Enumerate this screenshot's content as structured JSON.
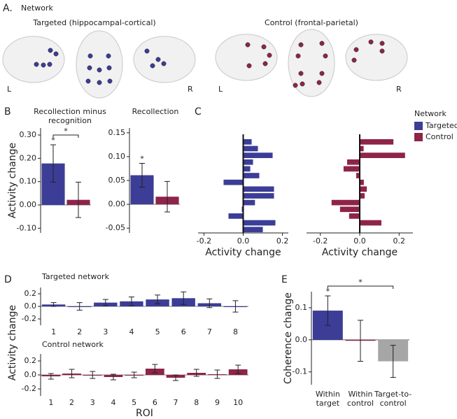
{
  "network_panel": {
    "label": "A.",
    "title": "Network",
    "groups": [
      {
        "name": "Targeted (hippocampal-cortical)",
        "left": "L",
        "right": "R",
        "color": "#3b3d96"
      },
      {
        "name": "Control (frontal-parietal)",
        "left": "L",
        "right": "R",
        "color": "#8e2449"
      }
    ]
  },
  "chart_data": [
    {
      "type": "bar",
      "panel": "B",
      "title": "Recollection minus\nrecognition",
      "y_label": "Activity change",
      "values": [
        0.178,
        0.022
      ],
      "errors": [
        0.08,
        0.076
      ],
      "colors": [
        "#3b3d96",
        "#8e2449"
      ],
      "ylim": [
        -0.12,
        0.33
      ],
      "yticks": [
        {
          "value": -0.1,
          "label": "-0.10"
        },
        {
          "value": 0,
          "label": "0.00"
        },
        {
          "value": 0.1,
          "label": "0.10"
        },
        {
          "value": 0.2,
          "label": "0.20"
        },
        {
          "value": 0.3,
          "label": "0.30"
        }
      ],
      "annotations": [
        {
          "text": "*",
          "bars": [
            0
          ]
        },
        {
          "text": "*",
          "bars": [
            0,
            1
          ]
        }
      ]
    },
    {
      "type": "bar",
      "title": "Recollection",
      "values": [
        0.061,
        0.016
      ],
      "errors": [
        0.025,
        0.032
      ],
      "colors": [
        "#3b3d96",
        "#8e2449"
      ],
      "ylim": [
        -0.06,
        0.16
      ],
      "yticks": [
        -0.05,
        {
          "value": 0,
          "label": "0.00"
        },
        0.05,
        {
          "value": 0.1,
          "label": "0.10"
        },
        0.15
      ],
      "annotations": [
        {
          "text": "*",
          "bars": [
            0
          ]
        }
      ]
    },
    {
      "type": "barh",
      "panel": "C",
      "x_label": "Activity change",
      "color": "#3b3d96",
      "values": [
        0.043,
        0.075,
        0.15,
        0.05,
        0.036,
        0.082,
        -0.1,
        0.157,
        0.157,
        0.06,
        -0.007,
        -0.075,
        0.164,
        0.1
      ],
      "xlim": [
        -0.23,
        0.23
      ],
      "xticks": [
        -0.2,
        {
          "value": 0,
          "label": "0.0"
        },
        0.2
      ]
    },
    {
      "type": "barh",
      "x_label": "Activity change",
      "color": "#8e2449",
      "values": [
        0.171,
        0.02,
        0.23,
        -0.064,
        -0.082,
        -0.018,
        0.021,
        0.036,
        0.025,
        -0.143,
        -0.1,
        -0.054,
        0.11,
        0.004
      ],
      "xlim": [
        -0.27,
        0.27
      ],
      "xticks": [
        -0.2,
        {
          "value": 0,
          "label": "0.0"
        },
        0.2
      ],
      "legend": {
        "title": "Network",
        "entries": [
          {
            "name": "Targeted",
            "color": "#3b3d96"
          },
          {
            "name": "Control",
            "color": "#8e2449"
          }
        ]
      }
    },
    {
      "type": "bar",
      "panel": "D",
      "title": "Targeted network",
      "y_label": "Activity change",
      "color": "#3b3d96",
      "categories": [
        "1",
        "2",
        "3",
        "4",
        "5",
        "6",
        "7",
        "8"
      ],
      "values": [
        0.03,
        0.0,
        0.06,
        0.08,
        0.11,
        0.13,
        0.05,
        0.0
      ],
      "errors": [
        0.03,
        0.06,
        0.05,
        0.07,
        0.07,
        0.1,
        0.07,
        0.09
      ],
      "ylim": [
        -0.3,
        0.3
      ],
      "yticks": [
        -0.2,
        {
          "value": 0,
          "label": "0.0"
        },
        0.2
      ]
    },
    {
      "type": "bar",
      "title": "Control network",
      "x_label": "ROI",
      "color": "#8e2449",
      "categories": [
        "1",
        "2",
        "3",
        "4",
        "5",
        "6",
        "7",
        "8",
        "9",
        "10"
      ],
      "values": [
        -0.02,
        0.02,
        0.0,
        -0.03,
        0.0,
        0.09,
        -0.04,
        0.03,
        0.01,
        0.08
      ],
      "errors": [
        0.04,
        0.06,
        0.05,
        0.04,
        0.04,
        0.06,
        0.04,
        0.05,
        0.06,
        0.06
      ],
      "ylim": [
        -0.3,
        0.3
      ],
      "yticks": [
        -0.2,
        {
          "value": 0,
          "label": "0.0"
        },
        0.2
      ]
    },
    {
      "type": "bar",
      "panel": "E",
      "y_label": "Coherence change",
      "categories": [
        "Within\ntarget",
        "Within\ncontrol",
        "Target-to-\ncontrol"
      ],
      "values": [
        0.091,
        -0.003,
        -0.067
      ],
      "errors": [
        0.046,
        0.064,
        0.05
      ],
      "colors": [
        "#3b3d96",
        "#8e2449",
        "#a6a6a6"
      ],
      "ylim": [
        -0.14,
        0.15
      ],
      "yticks": [
        -0.1,
        {
          "value": 0,
          "label": "0.0"
        },
        0.1
      ],
      "annotations": [
        {
          "text": "*",
          "bars": [
            0
          ]
        },
        {
          "text": "*",
          "bars": [
            0,
            2
          ]
        }
      ]
    }
  ]
}
